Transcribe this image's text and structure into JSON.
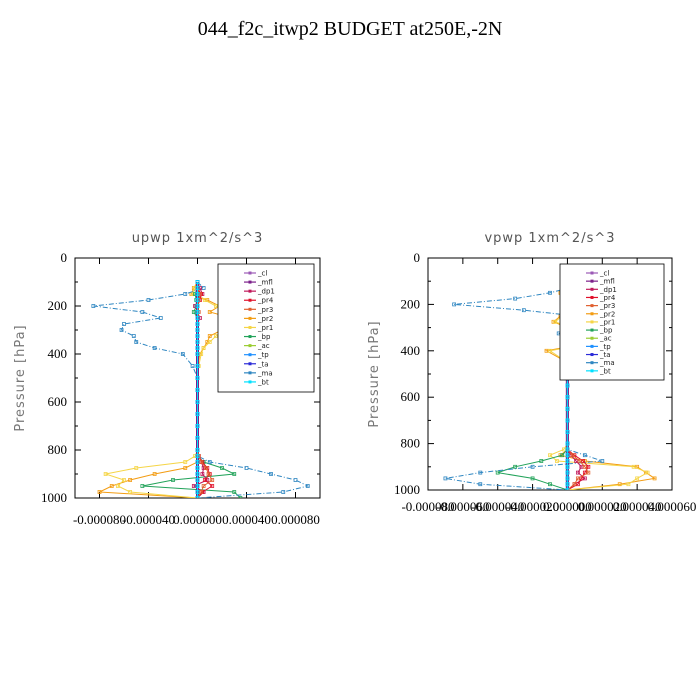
{
  "figure": {
    "title": "044_f2c_itwp2  BUDGET at250E,-2N"
  },
  "colors": {
    "_cl": "#9b59b6",
    "_mfl": "#7b1f8a",
    "_dp1": "#c0185a",
    "_pr4": "#e0102a",
    "_pr3": "#e06030",
    "_pr2": "#f39c12",
    "_pr1": "#f5d547",
    "_bp": "#22a35a",
    "_ac": "#9acd32",
    "_tp": "#1e90ff",
    "_ta": "#2b2bd8",
    "_ma": "#2e86c1",
    "_bt": "#00e0ff"
  },
  "chart_data": [
    {
      "type": "line",
      "title": "upwp   1xm^2/s^3",
      "xlabel": "",
      "ylabel": "Pressure [hPa]",
      "xlim": [
        -0.0001,
        0.0001
      ],
      "ylim": [
        1000,
        0
      ],
      "xticks": [
        "-0.000080",
        "-0.000040",
        "0.000000",
        "0.000040",
        "0.000080"
      ],
      "yticks": [
        "0",
        "200",
        "400",
        "600",
        "800",
        "1000"
      ],
      "legend_position": "top-right",
      "pressure": [
        100,
        125,
        150,
        175,
        200,
        225,
        250,
        275,
        300,
        325,
        350,
        375,
        400,
        450,
        500,
        550,
        600,
        650,
        700,
        750,
        800,
        825,
        850,
        875,
        900,
        925,
        950,
        975,
        1000
      ],
      "series": [
        {
          "name": "_cl",
          "values": [
            0,
            0,
            0,
            0,
            0,
            0,
            0,
            0,
            0,
            0,
            0,
            0,
            0,
            0,
            0,
            0,
            0,
            0,
            0,
            0,
            0,
            0,
            0,
            0,
            0,
            0,
            0,
            0,
            0
          ]
        },
        {
          "name": "_mfl",
          "values": [
            0,
            0,
            0,
            0,
            0,
            0,
            0,
            0,
            0,
            0,
            0,
            0,
            0,
            0,
            0,
            0,
            0,
            0,
            0,
            0,
            0,
            0,
            0,
            0,
            0,
            0,
            0,
            0,
            0
          ]
        },
        {
          "name": "_dp1",
          "values": [
            0,
            2e-06,
            4e-06,
            1e-06,
            -2e-06,
            0,
            2e-06,
            0,
            0,
            0,
            0,
            0,
            0,
            0,
            0,
            0,
            0,
            0,
            0,
            0,
            0,
            1e-06,
            3e-06,
            5e-06,
            4e-06,
            8e-06,
            -3e-06,
            5e-06,
            0
          ]
        },
        {
          "name": "_pr4",
          "values": [
            0,
            0,
            3e-06,
            2e-06,
            0,
            0,
            0,
            0,
            0,
            0,
            0,
            0,
            0,
            0,
            0,
            0,
            0,
            0,
            0,
            0,
            0,
            1e-06,
            4e-06,
            8e-06,
            1e-05,
            6e-06,
            1.2e-05,
            4e-06,
            0
          ]
        },
        {
          "name": "_pr3",
          "values": [
            0,
            0,
            2e-06,
            1e-06,
            0,
            1e-06,
            0,
            0,
            0,
            0,
            0,
            0,
            0,
            0,
            0,
            0,
            0,
            0,
            0,
            0,
            0,
            1e-06,
            3e-06,
            7e-06,
            9e-06,
            1.2e-05,
            5e-06,
            3e-06,
            0
          ]
        },
        {
          "name": "_pr2",
          "values": [
            0,
            -3e-06,
            -5e-06,
            8e-06,
            1.8e-05,
            1e-05,
            2.8e-05,
            3e-05,
            2e-05,
            1e-05,
            8e-06,
            5e-06,
            2e-06,
            0,
            0,
            0,
            0,
            0,
            0,
            0,
            0,
            0,
            0,
            -1e-05,
            -3.5e-05,
            -5.5e-05,
            -7e-05,
            -8e-05,
            0
          ]
        },
        {
          "name": "_pr1",
          "values": [
            0,
            -2e-06,
            -4e-06,
            6e-06,
            1.5e-05,
            2.2e-05,
            3e-05,
            3.5e-05,
            2.5e-05,
            1.5e-05,
            1e-05,
            5e-06,
            3e-06,
            1e-06,
            0,
            0,
            0,
            0,
            0,
            0,
            0,
            -2e-06,
            -1e-05,
            -5e-05,
            -7.5e-05,
            -6e-05,
            -6.5e-05,
            -5.5e-05,
            0
          ]
        },
        {
          "name": "_bp",
          "values": [
            0,
            0,
            -2e-06,
            -1e-06,
            -1e-06,
            -3e-06,
            0,
            0,
            0,
            0,
            0,
            0,
            0,
            0,
            0,
            0,
            0,
            0,
            0,
            0,
            0,
            0,
            5e-06,
            2e-05,
            3e-05,
            -2e-05,
            -4.5e-05,
            3e-05,
            3.5e-05
          ]
        },
        {
          "name": "_ac",
          "values": [
            0,
            0,
            0,
            0,
            0,
            0,
            0,
            0,
            0,
            0,
            0,
            0,
            0,
            0,
            0,
            0,
            0,
            0,
            0,
            0,
            0,
            0,
            0,
            0,
            0,
            0,
            0,
            0,
            0
          ]
        },
        {
          "name": "_tp",
          "values": [
            0,
            0,
            0,
            0,
            0,
            0,
            0,
            0,
            0,
            0,
            0,
            0,
            0,
            0,
            0,
            0,
            0,
            0,
            0,
            0,
            0,
            0,
            0,
            0,
            0,
            0,
            0,
            0,
            0
          ]
        },
        {
          "name": "_ta",
          "values": [
            0,
            0,
            0,
            0,
            0,
            0,
            0,
            0,
            0,
            0,
            0,
            0,
            0,
            0,
            0,
            0,
            0,
            0,
            0,
            0,
            0,
            0,
            0,
            0,
            0,
            0,
            0,
            0,
            0
          ]
        },
        {
          "name": "_ma",
          "values": [
            0,
            5e-06,
            -1e-05,
            -4e-05,
            -8.5e-05,
            -4.5e-05,
            -3e-05,
            -6e-05,
            -6.2e-05,
            -5.2e-05,
            -5e-05,
            -3.5e-05,
            -1.2e-05,
            -4e-06,
            0,
            0,
            0,
            0,
            0,
            0,
            0,
            0,
            1e-05,
            4e-05,
            6e-05,
            8e-05,
            9e-05,
            7e-05,
            0
          ]
        },
        {
          "name": "_bt",
          "values": [
            0,
            0,
            0,
            0,
            0,
            0,
            0,
            0,
            0,
            0,
            0,
            0,
            0,
            0,
            0,
            0,
            0,
            0,
            0,
            0,
            0,
            0,
            0,
            0,
            0,
            0,
            0,
            0,
            0
          ]
        }
      ]
    },
    {
      "type": "line",
      "title": "vpwp   1xm^2/s^3",
      "xlabel": "",
      "ylabel": "Pressure [hPa]",
      "xlim": [
        -8e-05,
        6e-05
      ],
      "ylim": [
        1000,
        0
      ],
      "xticks": [
        "-0.000080",
        "-0.000060",
        "-0.000040",
        "-0.000020",
        "0.000000",
        "0.000020",
        "0.000040",
        "0.000060"
      ],
      "yticks": [
        "0",
        "200",
        "400",
        "600",
        "800",
        "1000"
      ],
      "legend_position": "top-right",
      "pressure": [
        100,
        125,
        150,
        175,
        200,
        225,
        250,
        275,
        300,
        325,
        350,
        375,
        400,
        450,
        500,
        550,
        600,
        650,
        700,
        750,
        800,
        825,
        850,
        875,
        900,
        925,
        950,
        975,
        1000
      ],
      "series": [
        {
          "name": "_cl",
          "values": [
            0,
            0,
            0,
            0,
            0,
            0,
            0,
            0,
            0,
            0,
            0,
            0,
            0,
            0,
            0,
            0,
            0,
            0,
            0,
            0,
            0,
            0,
            0,
            0,
            0,
            0,
            0,
            0,
            0
          ]
        },
        {
          "name": "_mfl",
          "values": [
            0,
            0,
            0,
            0,
            0,
            0,
            0,
            0,
            0,
            0,
            0,
            0,
            0,
            0,
            0,
            0,
            0,
            0,
            0,
            0,
            0,
            0,
            0,
            0,
            0,
            0,
            0,
            0,
            0
          ]
        },
        {
          "name": "_dp1",
          "values": [
            0,
            0,
            3e-06,
            -3e-06,
            2e-06,
            0,
            2e-06,
            0,
            0,
            0,
            0,
            0,
            0,
            0,
            0,
            0,
            0,
            0,
            0,
            0,
            0,
            0,
            2e-06,
            5e-06,
            8e-06,
            6e-06,
            1e-05,
            4e-06,
            0
          ]
        },
        {
          "name": "_pr4",
          "values": [
            0,
            0,
            2e-06,
            3e-06,
            1e-06,
            1e-06,
            0,
            0,
            0,
            0,
            0,
            0,
            0,
            0,
            0,
            0,
            0,
            0,
            0,
            0,
            0,
            0,
            4e-06,
            9e-06,
            1.2e-05,
            1e-05,
            8e-06,
            6e-06,
            0
          ]
        },
        {
          "name": "_pr3",
          "values": [
            0,
            0,
            2e-06,
            2e-06,
            3e-06,
            2e-06,
            0,
            0,
            0,
            0,
            0,
            0,
            0,
            0,
            0,
            0,
            0,
            0,
            0,
            0,
            0,
            0,
            3e-06,
            7e-06,
            1e-05,
            1.2e-05,
            6e-06,
            4e-06,
            0
          ]
        },
        {
          "name": "_pr2",
          "values": [
            0,
            2e-06,
            -4e-06,
            2e-05,
            4e-05,
            1.2e-05,
            -4e-06,
            -8e-06,
            0,
            3e-06,
            1.2e-05,
            6e-06,
            -1.2e-05,
            0,
            0,
            0,
            0,
            0,
            0,
            0,
            0,
            0,
            -4e-06,
            1e-05,
            4e-05,
            4.5e-05,
            5e-05,
            3e-05,
            0
          ]
        },
        {
          "name": "_pr1",
          "values": [
            0,
            2e-06,
            -3e-06,
            1.8e-05,
            3.8e-05,
            1e-05,
            -3e-06,
            -7e-06,
            2e-06,
            4e-06,
            1.4e-05,
            8e-06,
            -1e-05,
            0,
            0,
            0,
            0,
            0,
            0,
            0,
            0,
            -2e-06,
            -1e-05,
            -6e-06,
            3.8e-05,
            4.6e-05,
            4e-05,
            3.5e-05,
            0
          ]
        },
        {
          "name": "_bp",
          "values": [
            0,
            0,
            -3e-06,
            -2e-06,
            -1e-06,
            -3e-06,
            0,
            0,
            0,
            0,
            0,
            0,
            0,
            0,
            0,
            0,
            0,
            0,
            0,
            0,
            0,
            0,
            -3e-06,
            -1.5e-05,
            -3e-05,
            -4e-05,
            -2e-05,
            -1e-05,
            0
          ]
        },
        {
          "name": "_ac",
          "values": [
            0,
            0,
            0,
            0,
            0,
            0,
            0,
            0,
            0,
            0,
            0,
            0,
            0,
            0,
            0,
            0,
            0,
            0,
            0,
            0,
            0,
            0,
            0,
            0,
            0,
            0,
            0,
            0,
            0
          ]
        },
        {
          "name": "_tp",
          "values": [
            0,
            0,
            0,
            0,
            0,
            0,
            0,
            0,
            0,
            0,
            0,
            0,
            0,
            0,
            0,
            0,
            0,
            0,
            0,
            0,
            0,
            0,
            0,
            0,
            0,
            0,
            0,
            0,
            0
          ]
        },
        {
          "name": "_ta",
          "values": [
            0,
            0,
            0,
            0,
            0,
            0,
            0,
            0,
            0,
            0,
            0,
            0,
            0,
            0,
            0,
            0,
            0,
            0,
            0,
            0,
            0,
            0,
            0,
            0,
            0,
            0,
            0,
            0,
            0
          ]
        },
        {
          "name": "_ma",
          "values": [
            0,
            3e-06,
            -1e-05,
            -3e-05,
            -6.5e-05,
            -2.5e-05,
            5e-06,
            1e-05,
            8e-06,
            -5e-06,
            8e-06,
            1.5e-05,
            1.2e-05,
            3e-06,
            0,
            0,
            0,
            0,
            0,
            0,
            0,
            0,
            1e-05,
            2e-05,
            -2e-05,
            -5e-05,
            -7e-05,
            -5e-05,
            0
          ]
        },
        {
          "name": "_bt",
          "values": [
            0,
            0,
            0,
            0,
            0,
            0,
            0,
            0,
            0,
            0,
            0,
            0,
            0,
            0,
            0,
            0,
            0,
            0,
            0,
            0,
            0,
            0,
            0,
            0,
            0,
            0,
            0,
            0,
            0
          ]
        }
      ]
    }
  ]
}
